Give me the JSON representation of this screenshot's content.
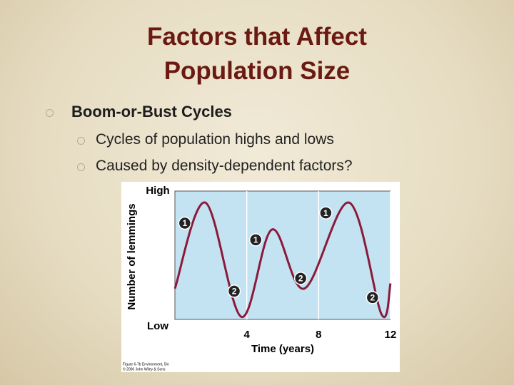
{
  "slide": {
    "title_lines": [
      "Factors that Affect",
      "Population Size"
    ],
    "bullet": "Boom-or-Bust Cycles",
    "sub_bullets": [
      "Cycles of population highs and lows",
      "Caused by density-dependent factors?"
    ]
  },
  "chart_data": {
    "type": "line",
    "y_label": "Number of lemmings",
    "x_label": "Time (years)",
    "x": [
      0,
      1.7,
      3.7,
      5.4,
      7.2,
      9.7,
      11.5,
      12
    ],
    "series": [
      {
        "name": "Lemmings",
        "color": "#8b1a3a",
        "values": [
          0.24,
          0.91,
          0.02,
          0.7,
          0.24,
          0.91,
          0.04,
          0.28
        ]
      }
    ],
    "xlim": [
      0,
      12
    ],
    "xticks": [
      4,
      8,
      12
    ],
    "ylim": [
      0,
      1
    ],
    "yticks": [
      {
        "value": 0,
        "label": "Low"
      },
      {
        "value": 1,
        "label": "High"
      }
    ],
    "grid": true,
    "annotations": [
      {
        "text": "1",
        "x": 0.55,
        "y": 0.75
      },
      {
        "text": "1",
        "x": 4.5,
        "y": 0.62
      },
      {
        "text": "1",
        "x": 8.4,
        "y": 0.83
      },
      {
        "text": "2",
        "x": 3.3,
        "y": 0.22
      },
      {
        "text": "2",
        "x": 7.0,
        "y": 0.32
      },
      {
        "text": "2",
        "x": 11.0,
        "y": 0.17
      }
    ],
    "caption_lines": [
      "Figure 6-7b Environment, 5/e",
      "© 2006 John Wiley & Sons"
    ]
  }
}
